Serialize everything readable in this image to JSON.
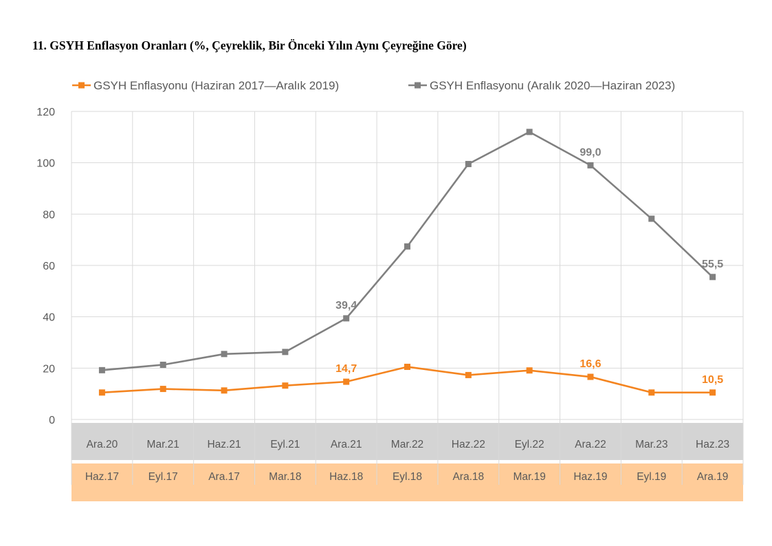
{
  "title": "11. GSYH Enflasyon Oranları (%, Çeyreklik, Bir Önceki Yılın Aynı Çeyreğine Göre)",
  "colors": {
    "orange": "#F4841F",
    "gray": "#808080",
    "band_gray": "#D4D4D4",
    "band_orange": "#FFCC99",
    "grid": "#D9D9D9",
    "text": "#595959"
  },
  "chart_data": {
    "type": "line",
    "title": "11. GSYH Enflasyon Oranları (%, Çeyreklik, Bir Önceki Yılın Aynı Çeyreğine Göre)",
    "xlabel": "",
    "ylabel": "",
    "ylim": [
      0,
      120
    ],
    "yticks": [
      0,
      20,
      40,
      60,
      80,
      100,
      120
    ],
    "grid": true,
    "legend_position": "top",
    "categories_gray": [
      "Ara.20",
      "Mar.21",
      "Haz.21",
      "Eyl.21",
      "Ara.21",
      "Mar.22",
      "Haz.22",
      "Eyl.22",
      "Ara.22",
      "Mar.23",
      "Haz.23"
    ],
    "categories_orange": [
      "Haz.17",
      "Eyl.17",
      "Ara.17",
      "Mar.18",
      "Haz.18",
      "Eyl.18",
      "Ara.18",
      "Mar.19",
      "Haz.19",
      "Eyl.19",
      "Ara.19"
    ],
    "series": [
      {
        "name": "GSYH Enflasyonu (Haziran 2017—Aralık 2019)",
        "color": "#F4841F",
        "values": [
          10.5,
          11.9,
          11.3,
          13.2,
          14.7,
          20.5,
          17.3,
          19.1,
          16.6,
          10.5,
          10.5
        ],
        "data_labels": {
          "4": "14,7",
          "8": "16,6",
          "10": "10,5"
        }
      },
      {
        "name": "GSYH Enflasyonu (Aralık 2020—Haziran 2023)",
        "color": "#808080",
        "values": [
          19.2,
          21.3,
          25.5,
          26.3,
          39.4,
          67.4,
          99.5,
          112.0,
          99.0,
          78.2,
          55.5
        ],
        "data_labels": {
          "4": "39,4",
          "8": "99,0",
          "10": "55,5"
        }
      }
    ]
  }
}
